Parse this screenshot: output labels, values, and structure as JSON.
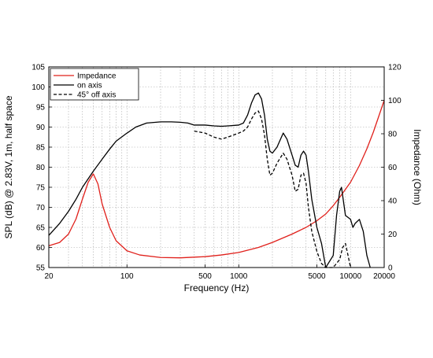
{
  "chart_data": {
    "type": "line",
    "xlabel": "Frequency (Hz)",
    "ylabel_left": "SPL (dB) @ 2.83V, 1m, half space",
    "ylabel_right": "Impedance (Ohm)",
    "x_scale": "log",
    "xlim": [
      20,
      20000
    ],
    "ylim_left": [
      55,
      105
    ],
    "ylim_right": [
      0,
      120
    ],
    "grid": true,
    "legend_position": "top-left",
    "x_ticks": [
      {
        "v": 20,
        "label": "20"
      },
      {
        "v": 100,
        "label": "100"
      },
      {
        "v": 500,
        "label": "500"
      },
      {
        "v": 1000,
        "label": "1000"
      },
      {
        "v": 5000,
        "label": "5000"
      },
      {
        "v": 10000,
        "label": "10000"
      },
      {
        "v": 20000,
        "label": "20000"
      }
    ],
    "y_ticks_left": [
      "55",
      "60",
      "65",
      "70",
      "75",
      "80",
      "85",
      "90",
      "95",
      "100",
      "105"
    ],
    "y_ticks_right": [
      "0",
      "20",
      "40",
      "60",
      "80",
      "100",
      "120"
    ],
    "series": [
      {
        "name": "Impedance",
        "axis": "right",
        "color": "#e0201b",
        "dash": "solid",
        "points": [
          [
            20,
            13
          ],
          [
            25,
            15
          ],
          [
            30,
            20
          ],
          [
            35,
            29
          ],
          [
            40,
            41
          ],
          [
            45,
            51
          ],
          [
            50,
            56
          ],
          [
            55,
            50
          ],
          [
            60,
            38
          ],
          [
            70,
            24
          ],
          [
            80,
            16
          ],
          [
            100,
            10
          ],
          [
            130,
            7.5
          ],
          [
            200,
            6
          ],
          [
            300,
            5.8
          ],
          [
            500,
            6.5
          ],
          [
            700,
            7.5
          ],
          [
            1000,
            9
          ],
          [
            1500,
            12
          ],
          [
            2000,
            15
          ],
          [
            3000,
            20
          ],
          [
            4000,
            24
          ],
          [
            5000,
            28
          ],
          [
            6000,
            32
          ],
          [
            7000,
            37
          ],
          [
            8000,
            42
          ],
          [
            10000,
            51
          ],
          [
            12000,
            61
          ],
          [
            14000,
            71
          ],
          [
            16000,
            81
          ],
          [
            18000,
            91
          ],
          [
            20000,
            100
          ]
        ]
      },
      {
        "name": "on axis",
        "axis": "left",
        "color": "#000000",
        "dash": "solid",
        "points": [
          [
            20,
            63
          ],
          [
            25,
            66
          ],
          [
            30,
            69
          ],
          [
            35,
            72
          ],
          [
            40,
            75
          ],
          [
            50,
            79
          ],
          [
            60,
            82
          ],
          [
            70,
            84.5
          ],
          [
            80,
            86.5
          ],
          [
            100,
            88.5
          ],
          [
            120,
            90
          ],
          [
            150,
            91
          ],
          [
            200,
            91.3
          ],
          [
            250,
            91.3
          ],
          [
            300,
            91.2
          ],
          [
            350,
            91
          ],
          [
            400,
            90.5
          ],
          [
            500,
            90.5
          ],
          [
            600,
            90.3
          ],
          [
            700,
            90.2
          ],
          [
            800,
            90.3
          ],
          [
            1000,
            90.5
          ],
          [
            1100,
            91
          ],
          [
            1200,
            93
          ],
          [
            1300,
            96
          ],
          [
            1400,
            98
          ],
          [
            1500,
            98.5
          ],
          [
            1600,
            97
          ],
          [
            1700,
            93
          ],
          [
            1800,
            87
          ],
          [
            1900,
            84
          ],
          [
            2000,
            83.5
          ],
          [
            2200,
            85
          ],
          [
            2500,
            88.5
          ],
          [
            2700,
            87
          ],
          [
            3000,
            83
          ],
          [
            3200,
            80.5
          ],
          [
            3400,
            80
          ],
          [
            3600,
            83
          ],
          [
            3800,
            84
          ],
          [
            4000,
            83
          ],
          [
            4200,
            79
          ],
          [
            4500,
            72
          ],
          [
            5000,
            65
          ],
          [
            5500,
            61
          ],
          [
            6000,
            55
          ],
          [
            7000,
            58
          ],
          [
            7500,
            68
          ],
          [
            8000,
            74
          ],
          [
            8300,
            75
          ],
          [
            9000,
            68
          ],
          [
            10000,
            67
          ],
          [
            10500,
            65
          ],
          [
            11000,
            66
          ],
          [
            12000,
            67
          ],
          [
            13000,
            64
          ],
          [
            14000,
            58
          ],
          [
            15000,
            55
          ]
        ]
      },
      {
        "name": "45° off axis",
        "axis": "left",
        "color": "#000000",
        "dash": "dashed",
        "points": [
          [
            400,
            89
          ],
          [
            500,
            88.5
          ],
          [
            600,
            87.5
          ],
          [
            700,
            87
          ],
          [
            800,
            87.5
          ],
          [
            1000,
            88.5
          ],
          [
            1100,
            89
          ],
          [
            1200,
            90
          ],
          [
            1300,
            92
          ],
          [
            1400,
            93.5
          ],
          [
            1500,
            94
          ],
          [
            1600,
            92
          ],
          [
            1700,
            88
          ],
          [
            1800,
            82
          ],
          [
            1900,
            78
          ],
          [
            2000,
            78.5
          ],
          [
            2200,
            81
          ],
          [
            2500,
            83.5
          ],
          [
            2700,
            82
          ],
          [
            3000,
            78
          ],
          [
            3200,
            74
          ],
          [
            3400,
            74.5
          ],
          [
            3600,
            78
          ],
          [
            3800,
            78.5
          ],
          [
            4000,
            76
          ],
          [
            4200,
            70
          ],
          [
            4500,
            64
          ],
          [
            5000,
            59
          ],
          [
            5500,
            56
          ],
          [
            6000,
            55
          ],
          [
            7000,
            55
          ],
          [
            8000,
            57
          ],
          [
            8500,
            60
          ],
          [
            9000,
            61
          ],
          [
            9500,
            58
          ],
          [
            10000,
            55
          ]
        ]
      }
    ]
  }
}
